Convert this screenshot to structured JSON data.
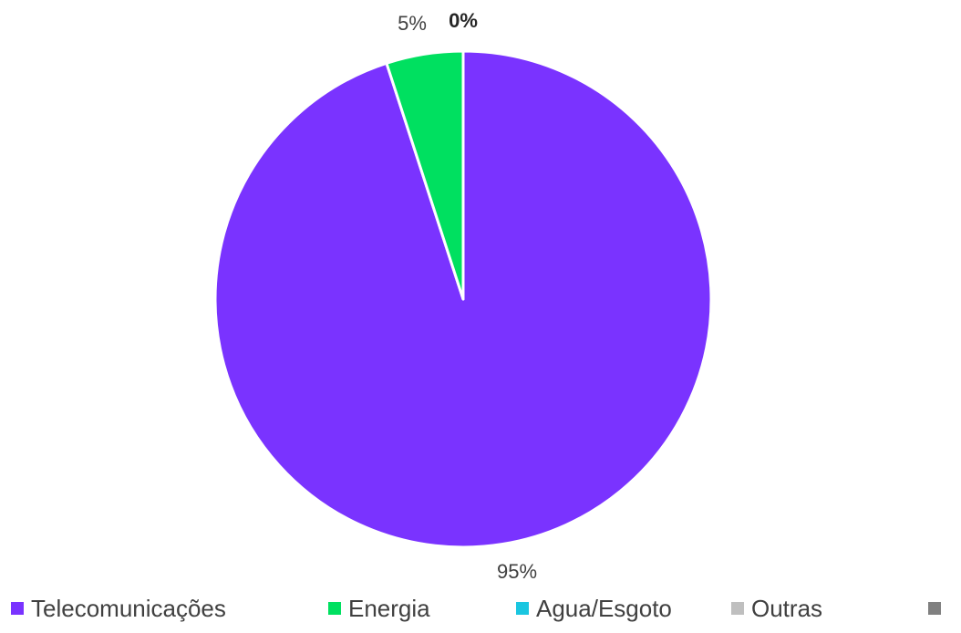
{
  "chart_data": {
    "type": "pie",
    "title": "",
    "slices": [
      {
        "label": "Telecomunicações",
        "value": 95,
        "data_label": "95%",
        "color": "#7A33FF"
      },
      {
        "label": "Energia",
        "value": 5,
        "data_label": "5%",
        "color": "#00E060"
      },
      {
        "label": "Agua/Esgoto",
        "value": 0,
        "data_label": "0%",
        "color": "#1AC6E0"
      },
      {
        "label": "Outras",
        "value": 0,
        "data_label": "",
        "color": "#BFBFBF"
      },
      {
        "label": "",
        "value": 0,
        "data_label": "",
        "color": "#808080"
      }
    ],
    "legend_position": "bottom"
  }
}
